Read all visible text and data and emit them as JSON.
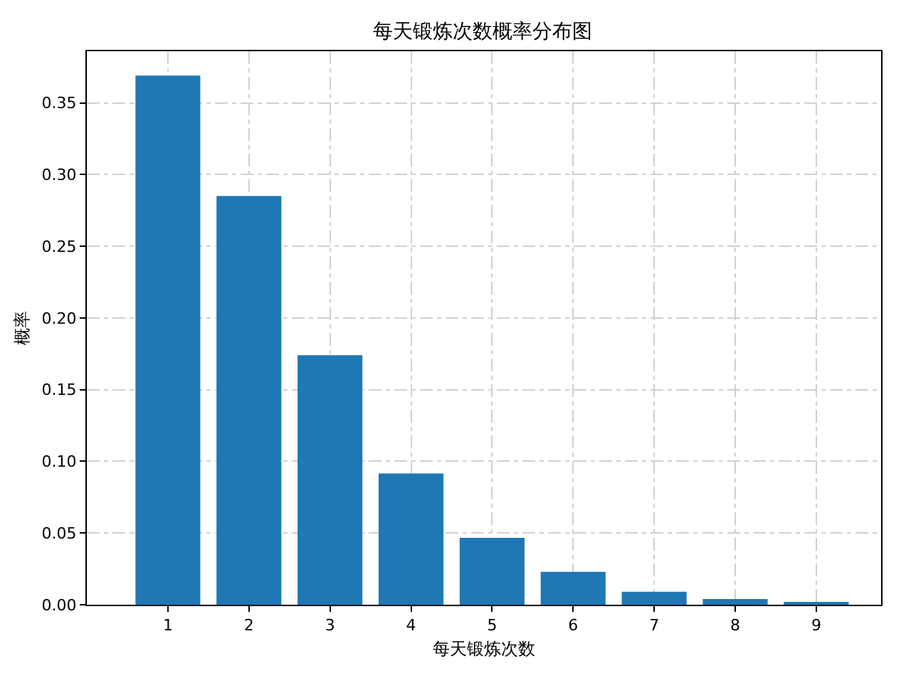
{
  "chart_data": {
    "type": "bar",
    "title": "每天锻炼次数概率分布图",
    "xlabel": "每天锻炼次数",
    "ylabel": "概率",
    "x": [
      1,
      2,
      3,
      4,
      5,
      6,
      7,
      8,
      9
    ],
    "values": [
      0.369,
      0.285,
      0.174,
      0.0915,
      0.0467,
      0.0229,
      0.009,
      0.004,
      0.002
    ],
    "color": "#1f77b4",
    "xlim": [
      0.0,
      9.8
    ],
    "xticks": [
      1,
      2,
      3,
      4,
      5,
      6,
      7,
      8,
      9
    ],
    "ylim": [
      0,
      0.386
    ],
    "yticks": [
      {
        "value": 0,
        "label": "0.00"
      },
      {
        "value": 0.05,
        "label": "0.05"
      },
      {
        "value": 0.1,
        "label": "0.10"
      },
      {
        "value": 0.15,
        "label": "0.15"
      },
      {
        "value": 0.2,
        "label": "0.20"
      },
      {
        "value": 0.25,
        "label": "0.25"
      },
      {
        "value": 0.3,
        "label": "0.30"
      },
      {
        "value": 0.35,
        "label": "0.35"
      }
    ],
    "grid": true
  }
}
